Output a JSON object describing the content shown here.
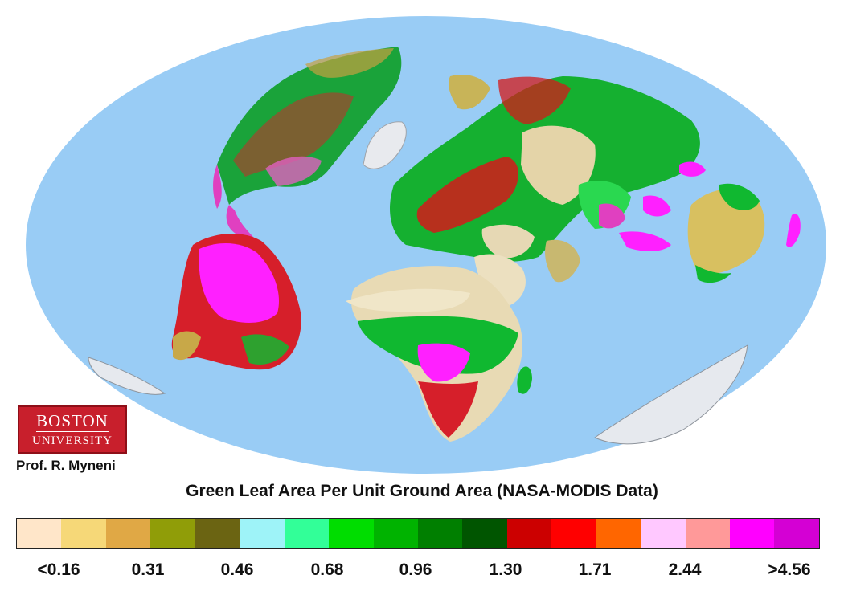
{
  "logo": {
    "line1": "BOSTON",
    "line2": "UNIVERSITY"
  },
  "credit": "Prof. R. Myneni",
  "title": "Green Leaf Area Per Unit Ground Area (NASA-MODIS Data)",
  "colors": {
    "ocean": "#99ccf5",
    "desert": "#efe0bd",
    "ice": "#e6e9ee",
    "logo_red": "#c81f2c"
  },
  "legend": {
    "swatches": [
      "#ffe6c9",
      "#f6d878",
      "#e0a845",
      "#909d08",
      "#6b6412",
      "#9ef3f8",
      "#32ff98",
      "#00dd00",
      "#00b300",
      "#007f00",
      "#005500",
      "#cc0000",
      "#ff0000",
      "#ff6600",
      "#ffc8ff",
      "#ff9999",
      "#ff00ff",
      "#d400d4"
    ],
    "ticks": [
      "<0.16",
      "0.31",
      "0.46",
      "0.68",
      "0.96",
      "1.30",
      "1.71",
      "2.44",
      ">4.56"
    ]
  }
}
